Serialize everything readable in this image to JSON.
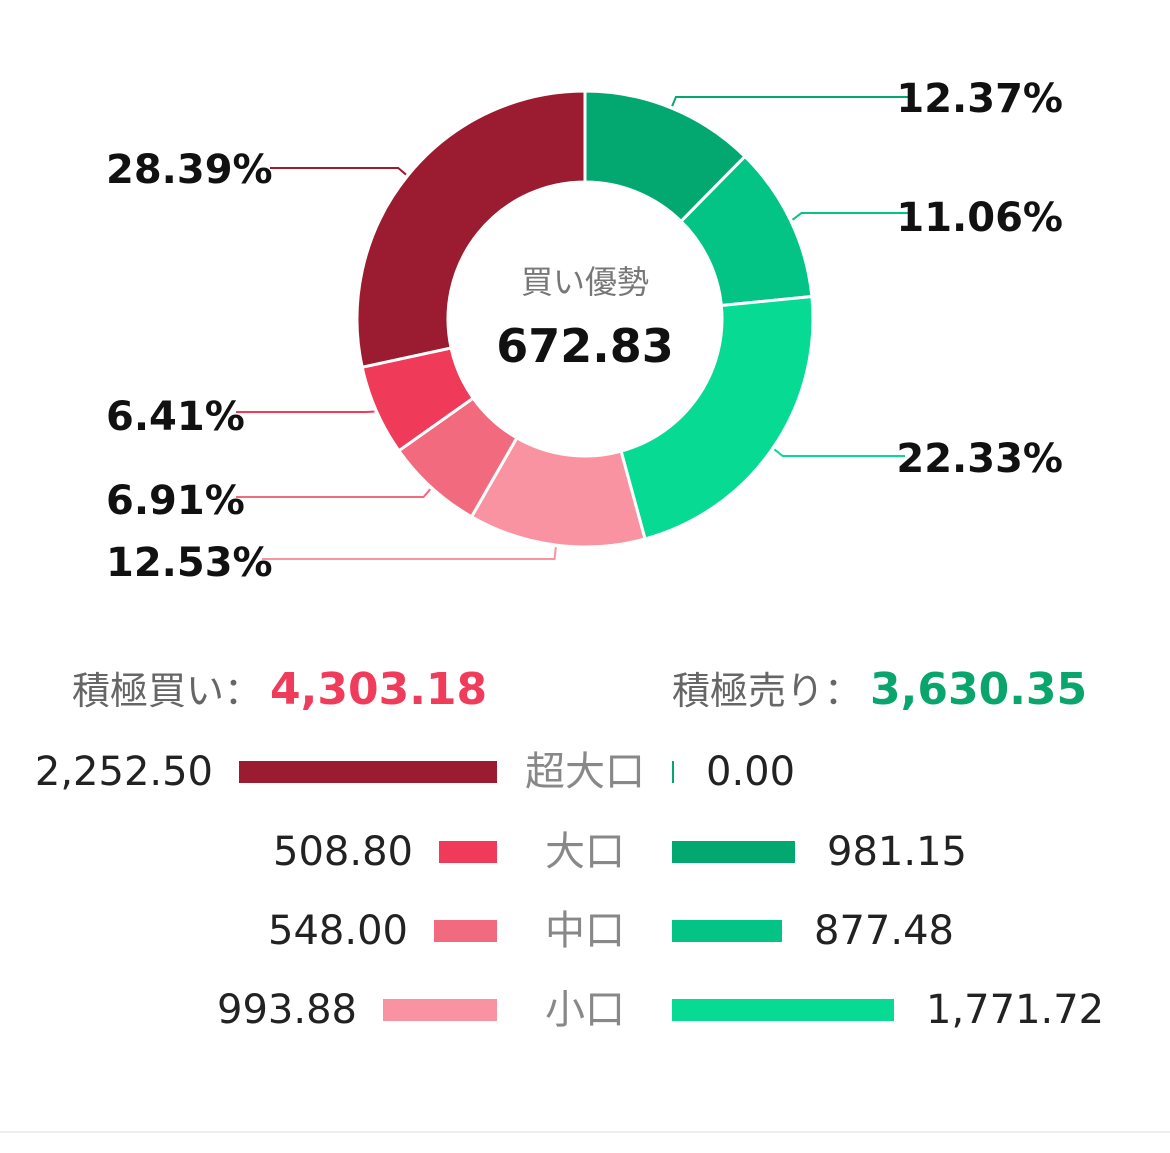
{
  "chart_data": {
    "type": "pie",
    "center": {
      "caption": "買い優勢",
      "value": "672.83"
    },
    "slices": [
      {
        "label": "12.37%",
        "value": 12.37,
        "color": "#03a870"
      },
      {
        "label": "11.06%",
        "value": 11.06,
        "color": "#04c485"
      },
      {
        "label": "22.33%",
        "value": 22.33,
        "color": "#07db93"
      },
      {
        "label": "12.53%",
        "value": 12.53,
        "color": "#fa93a1"
      },
      {
        "label": "6.91%",
        "value": 6.91,
        "color": "#f26a7e"
      },
      {
        "label": "6.41%",
        "value": 6.41,
        "color": "#ef3a5a"
      },
      {
        "label": "28.39%",
        "value": 28.39,
        "color": "#9b1b30"
      }
    ]
  },
  "summary": {
    "buy": {
      "caption": "積極買い：",
      "value": "4,303.18",
      "color": "#f03c5b"
    },
    "sell": {
      "caption": "積極売り：",
      "value": "3,630.35",
      "color": "#0aa56d"
    }
  },
  "breakdown": [
    {
      "category": "超大口",
      "buy": "2,252.50",
      "buy_value": 2252.5,
      "buy_color": "#9b1b30",
      "sell": "0.00",
      "sell_value": 0,
      "sell_color": "#03a870"
    },
    {
      "category": "大口",
      "buy": "508.80",
      "buy_value": 508.8,
      "buy_color": "#ef3a5a",
      "sell": "981.15",
      "sell_value": 981.15,
      "sell_color": "#03a870"
    },
    {
      "category": "中口",
      "buy": "548.00",
      "buy_value": 548.0,
      "buy_color": "#f26a7e",
      "sell": "877.48",
      "sell_value": 877.48,
      "sell_color": "#04c485"
    },
    {
      "category": "小口",
      "buy": "993.88",
      "buy_value": 993.88,
      "buy_color": "#fa93a1",
      "sell": "1,771.72",
      "sell_value": 1771.72,
      "sell_color": "#07db93"
    }
  ]
}
